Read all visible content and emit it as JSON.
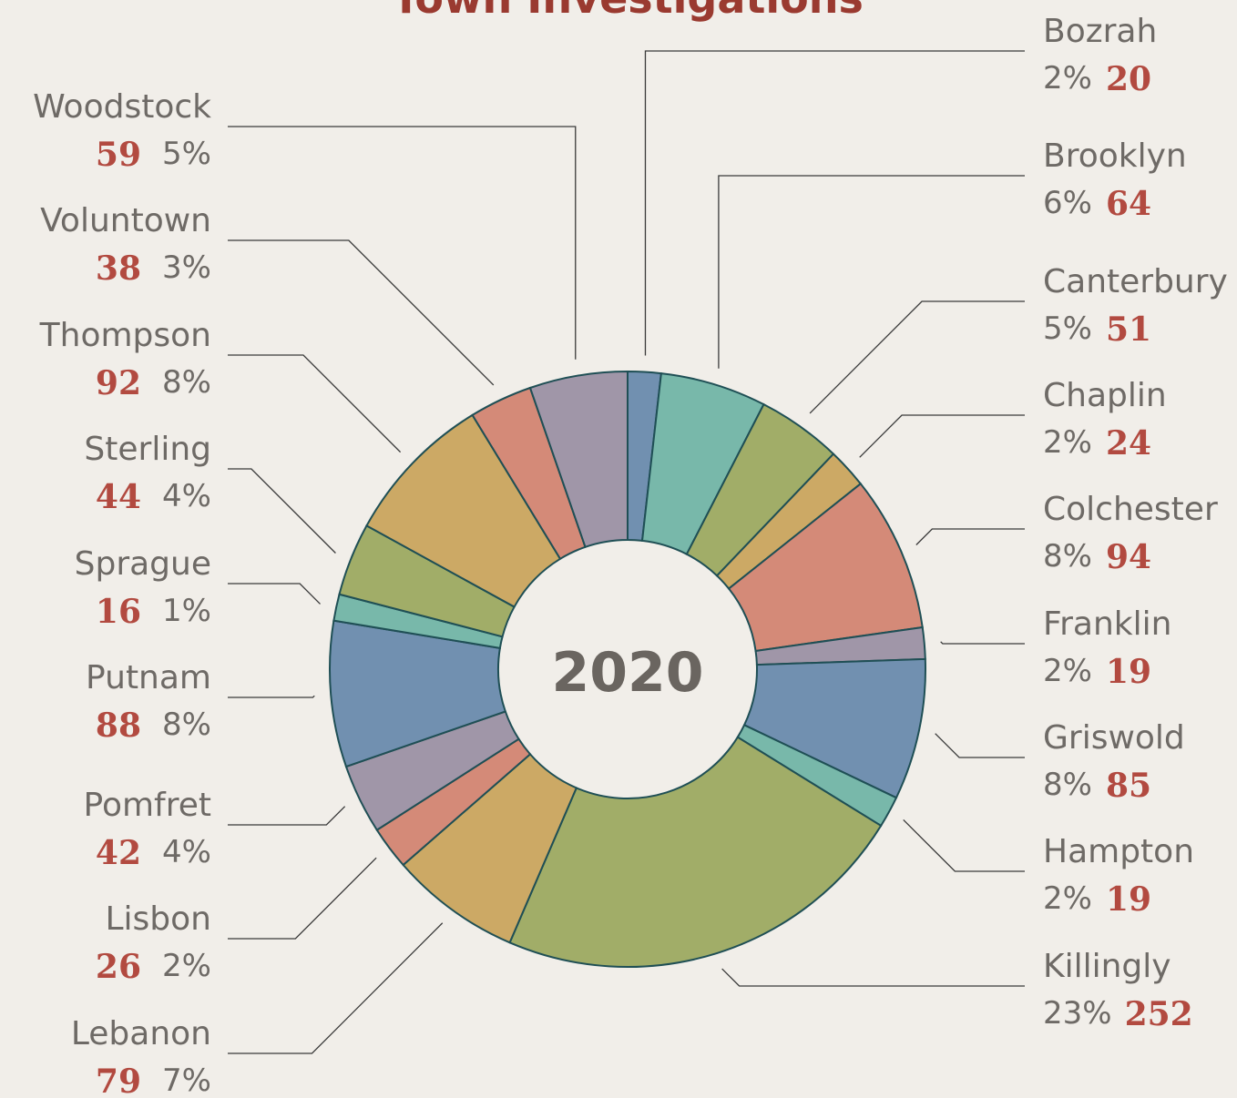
{
  "chart_data": {
    "type": "donut",
    "title": "Town Investigations",
    "center_label": "2020",
    "categories": [
      "Bozrah",
      "Brooklyn",
      "Canterbury",
      "Chaplin",
      "Colchester",
      "Franklin",
      "Griswold",
      "Hampton",
      "Killingly",
      "Lebanon",
      "Lisbon",
      "Pomfret",
      "Putnam",
      "Sprague",
      "Sterling",
      "Thompson",
      "Voluntown",
      "Woodstock"
    ],
    "values": [
      20,
      64,
      51,
      24,
      94,
      19,
      85,
      19,
      252,
      79,
      26,
      42,
      88,
      16,
      44,
      92,
      38,
      59
    ],
    "percent_labels": [
      "2%",
      "6%",
      "5%",
      "2%",
      "8%",
      "2%",
      "8%",
      "2%",
      "23%",
      "7%",
      "2%",
      "4%",
      "8%",
      "1%",
      "4%",
      "8%",
      "3%",
      "5%"
    ],
    "colors": [
      "#7190b0",
      "#78b8aa",
      "#a1ad68",
      "#cca965",
      "#d48a78",
      "#a096a8",
      "#7190b0",
      "#78b8aa",
      "#a1ad68",
      "#cca965",
      "#d48a78",
      "#a096a8",
      "#7190b0",
      "#78b8aa",
      "#a1ad68",
      "#cca965",
      "#d48a78",
      "#a096a8"
    ]
  }
}
